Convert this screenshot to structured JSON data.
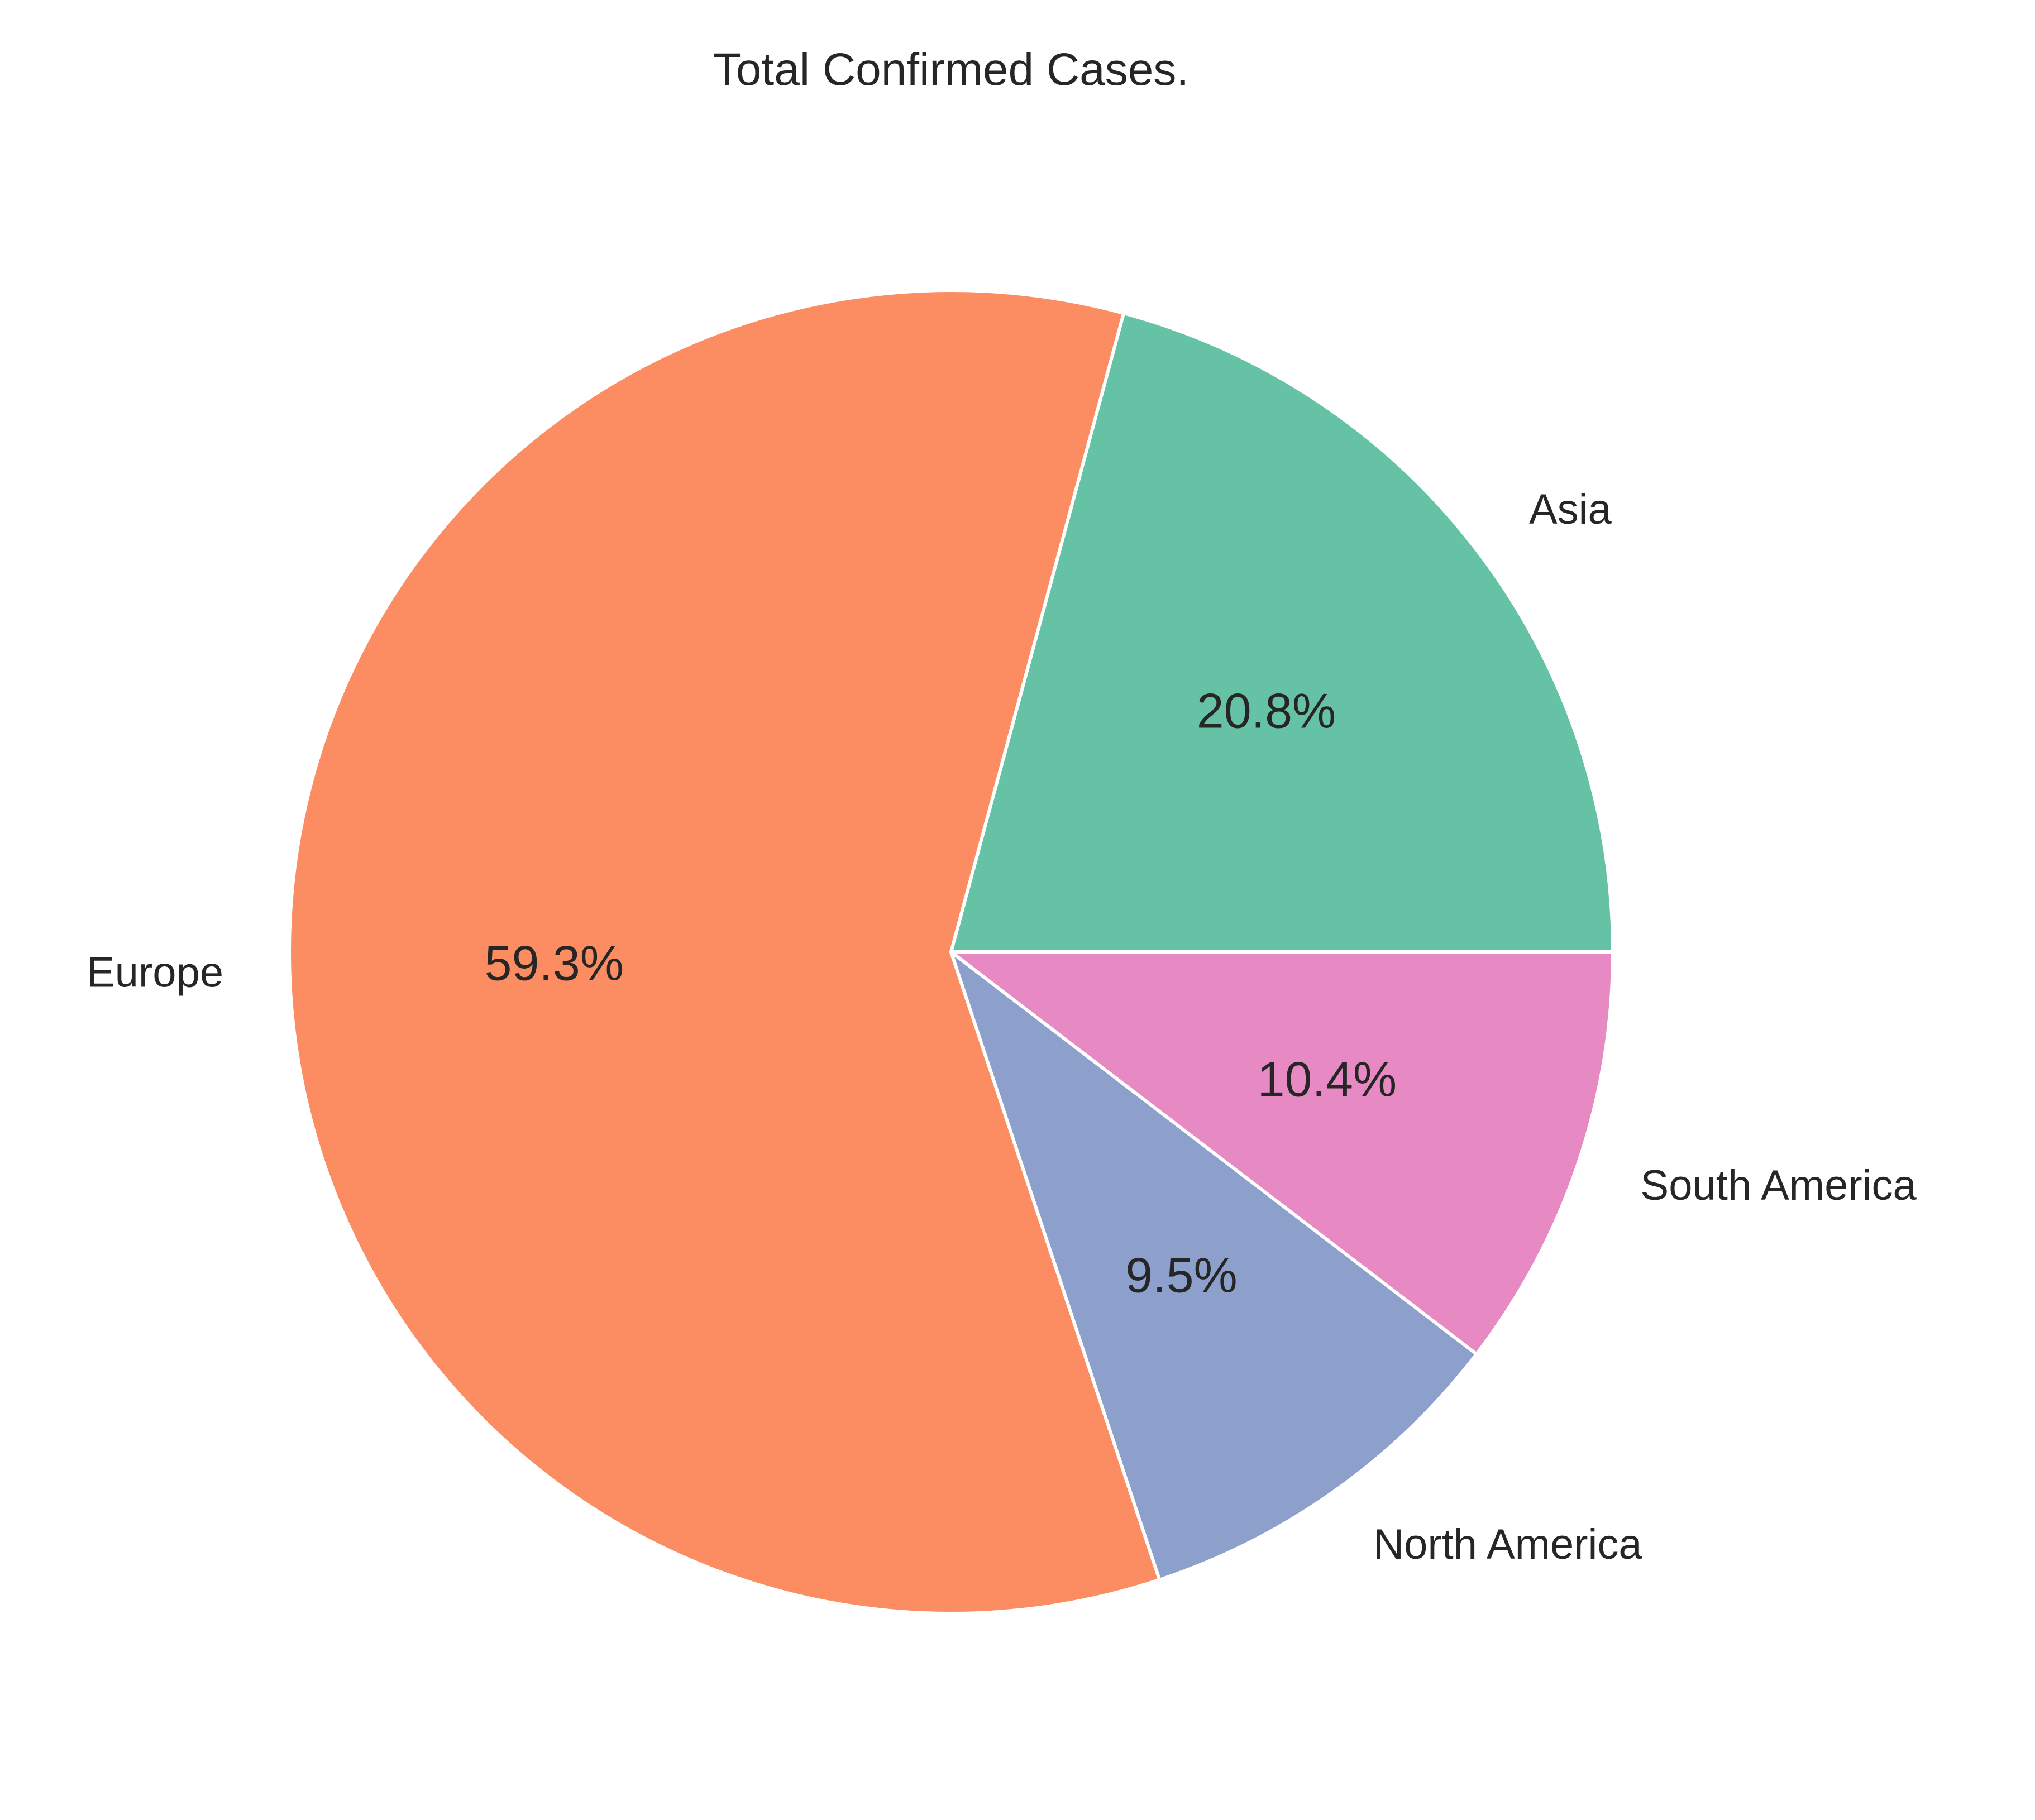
{
  "chart_data": {
    "type": "pie",
    "title": "Total Confirmed Cases.",
    "categories": [
      "Asia",
      "Europe",
      "North America",
      "South America"
    ],
    "values": [
      20.8,
      59.3,
      9.5,
      10.4
    ],
    "value_labels": [
      "20.8%",
      "59.3%",
      "9.5%",
      "10.4%"
    ],
    "colors": [
      "#66c2a5",
      "#fc8d62",
      "#8da0cb",
      "#e78ac3"
    ],
    "start_angle": 0,
    "direction": "counterclockwise",
    "edge_color": "#ffffff",
    "legend": "none"
  }
}
